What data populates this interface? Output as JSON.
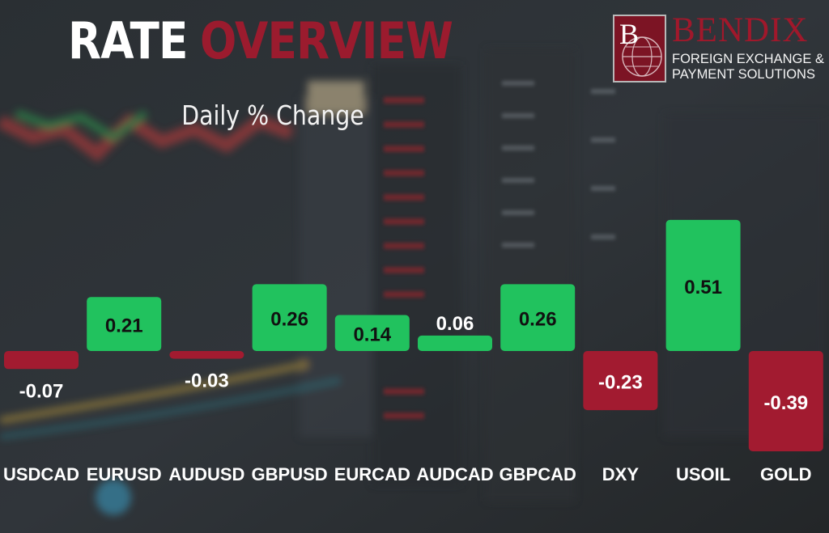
{
  "header": {
    "title_part1": "RATE",
    "title_part2": "OVERVIEW",
    "subtitle": "Daily % Change"
  },
  "logo": {
    "name": "BENDIX",
    "tagline_line1": "FOREIGN EXCHANGE &",
    "tagline_line2": "PAYMENT SOLUTIONS",
    "badge_letter": "B"
  },
  "colors": {
    "positive": "#21c25e",
    "negative": "#a21b30",
    "brand_red": "#9b1b2e",
    "label": "#ffffff",
    "value_on_bar": "#111111"
  },
  "chart_data": {
    "type": "bar",
    "title": "Daily % Change",
    "xlabel": "",
    "ylabel": "",
    "categories": [
      "USDCAD",
      "EURUSD",
      "AUDUSD",
      "GBPUSD",
      "EURCAD",
      "AUDCAD",
      "GBPCAD",
      "DXY",
      "USOIL",
      "GOLD"
    ],
    "values": [
      -0.07,
      0.21,
      -0.03,
      0.26,
      0.14,
      0.06,
      0.26,
      -0.23,
      0.51,
      -0.39
    ],
    "value_labels": [
      "-0.07",
      "0.21",
      "-0.03",
      "0.26",
      "0.14",
      "0.06",
      "0.26",
      "-0.23",
      "0.51",
      "-0.39"
    ],
    "ylim": [
      -0.39,
      0.51
    ],
    "grid": false,
    "legend": "none"
  }
}
